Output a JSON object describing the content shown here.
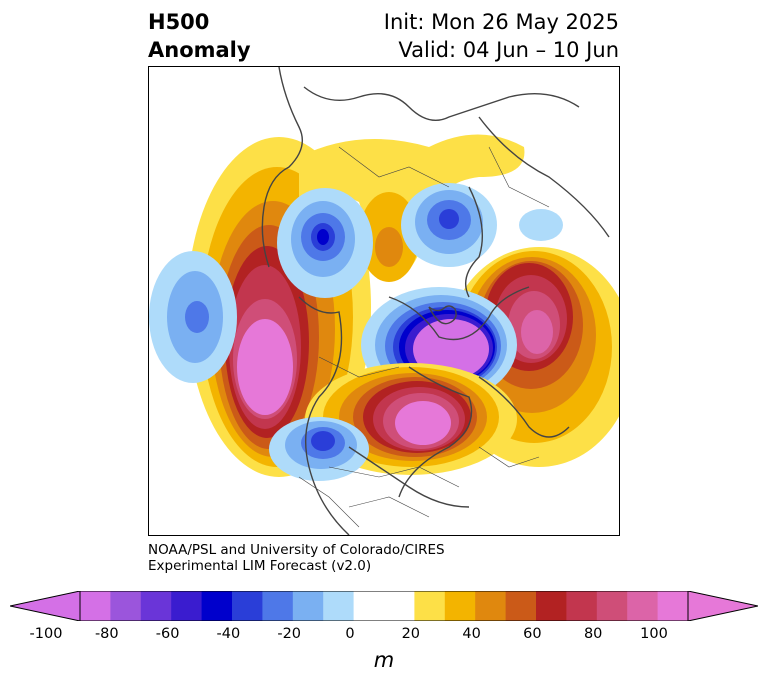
{
  "header": {
    "title_line1": "H500",
    "title_line2": "Anomaly",
    "init_text": "Init: Mon 26 May 2025",
    "valid_text": "Valid: 04 Jun – 10 Jun"
  },
  "credit": {
    "line1": "NOAA/PSL and University of Colorado/CIRES",
    "line2": "Experimental LIM Forecast (v2.0)"
  },
  "colorbar": {
    "ticks": [
      "-100",
      "-80",
      "-60",
      "-40",
      "-20",
      "0",
      "20",
      "40",
      "60",
      "80",
      "100"
    ],
    "unit": "m",
    "colors": [
      "#d470e6",
      "#9b55dc",
      "#6a35d8",
      "#3a1ccf",
      "#0000cc",
      "#2a3ed8",
      "#4e78e8",
      "#7ab0f2",
      "#aedbfa",
      "#ffffff",
      "#ffffff",
      "#fde047",
      "#f3b400",
      "#e0880e",
      "#cb5a18",
      "#b22222",
      "#c2364e",
      "#cf4e78",
      "#dc64a8",
      "#e678d8"
    ],
    "arrow_min_color": "#d470e6",
    "arrow_max_color": "#e678d8"
  },
  "map_colors": {
    "neg": [
      "#aedbfa",
      "#7ab0f2",
      "#4e78e8",
      "#2a3ed8",
      "#0000cc",
      "#3a1ccf",
      "#d470e6"
    ],
    "pos": [
      "#fde047",
      "#f3b400",
      "#e0880e",
      "#cb5a18",
      "#b22222",
      "#c2364e",
      "#cf4e78",
      "#e678d8"
    ],
    "coast": "#444444"
  }
}
